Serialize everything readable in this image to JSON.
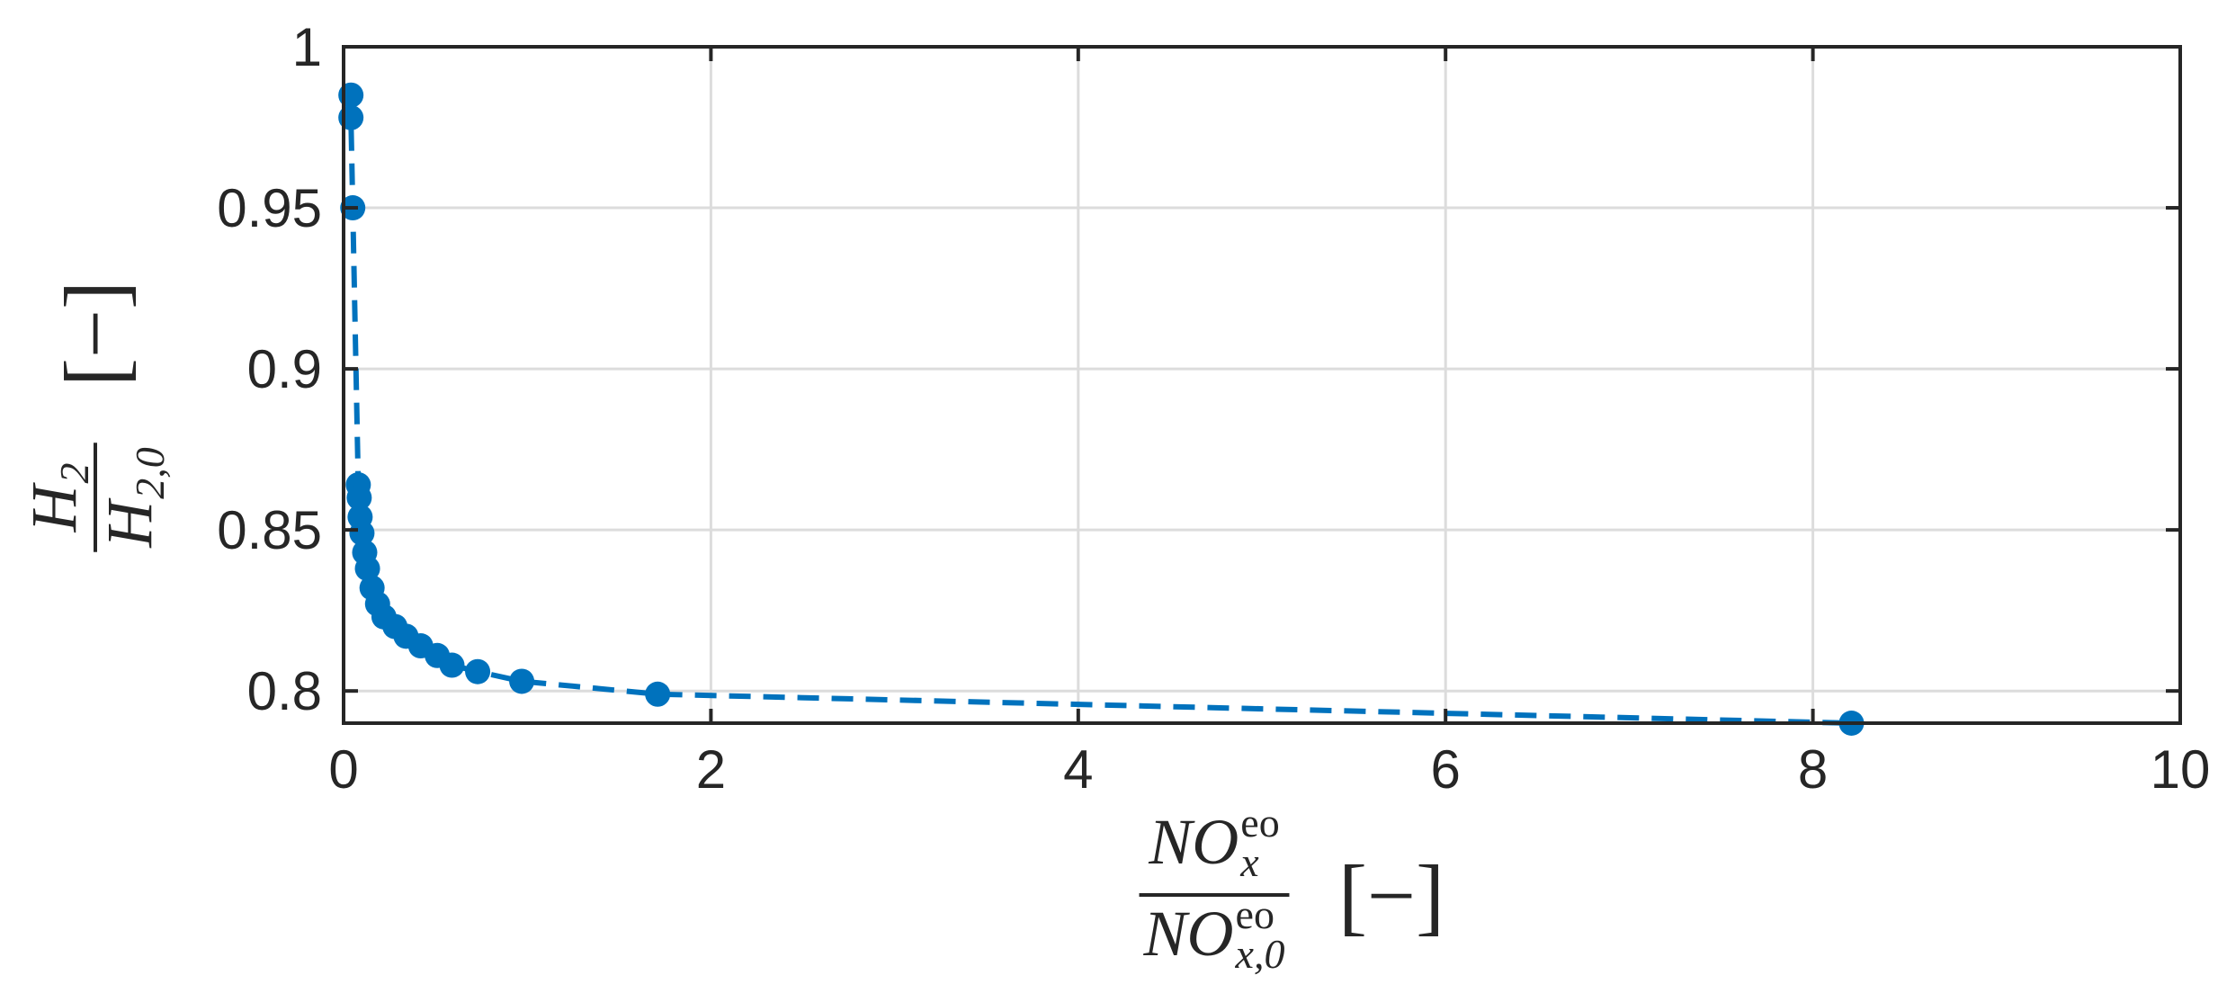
{
  "chart_data": {
    "type": "line",
    "xlabel": {
      "numerator": {
        "base": "NO",
        "sub": "x",
        "sup": "eo"
      },
      "denominator": {
        "base": "NO",
        "sub": "x,0",
        "sup": "eo"
      },
      "unit": "[−]"
    },
    "ylabel": {
      "numerator": {
        "base": "H",
        "sub": "2"
      },
      "denominator": {
        "base": "H",
        "sub": "2,0"
      },
      "unit": "[−]"
    },
    "xlim": [
      0,
      10
    ],
    "xticks": [
      0,
      2,
      4,
      6,
      8,
      10
    ],
    "ylim": [
      0.79,
      1
    ],
    "yticks": [
      0.8,
      0.85,
      0.9,
      0.95,
      1
    ],
    "grid": true,
    "series": [
      {
        "color": "#0072BD",
        "line_style": "dashed",
        "marker": "circle",
        "x": [
          0.04,
          0.04,
          0.05,
          0.08,
          0.085,
          0.09,
          0.1,
          0.115,
          0.13,
          0.155,
          0.185,
          0.22,
          0.28,
          0.34,
          0.42,
          0.51,
          0.59,
          0.73,
          0.97,
          1.71,
          8.21
        ],
        "y": [
          0.985,
          0.978,
          0.95,
          0.864,
          0.86,
          0.854,
          0.849,
          0.843,
          0.838,
          0.832,
          0.827,
          0.823,
          0.82,
          0.817,
          0.814,
          0.811,
          0.808,
          0.806,
          0.803,
          0.799,
          0.79
        ]
      }
    ]
  }
}
